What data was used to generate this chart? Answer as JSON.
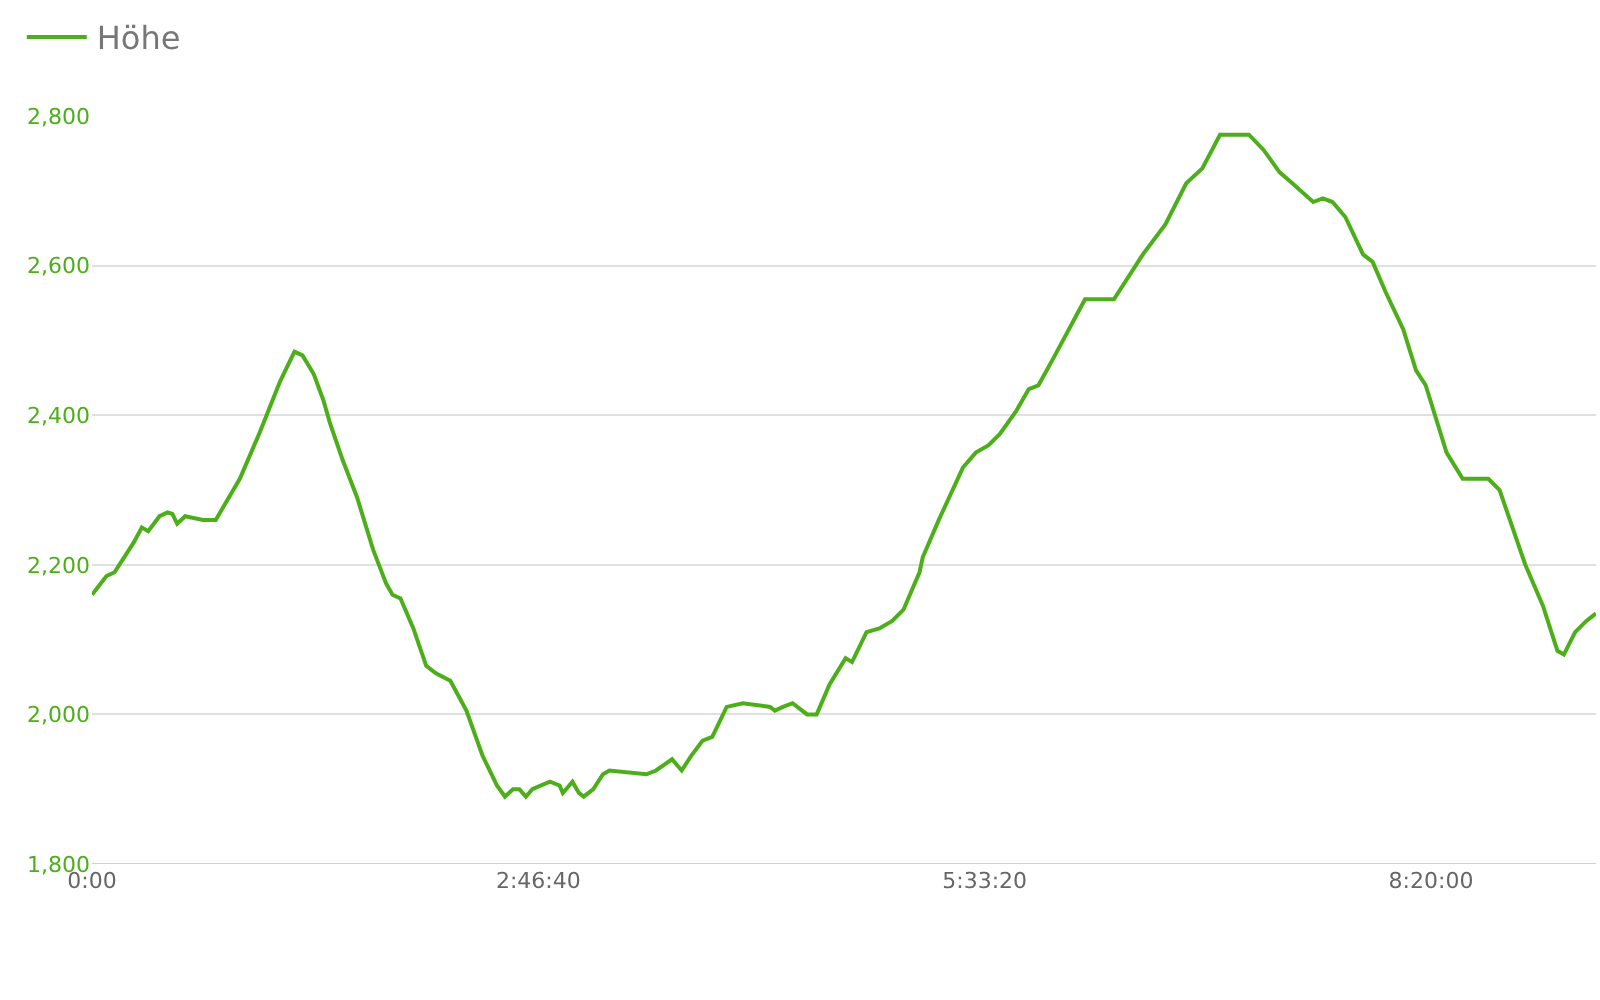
{
  "chart_data": {
    "type": "line",
    "legend": "top left",
    "grid": "y",
    "marker": "none",
    "line_style": "solid",
    "x": [
      0,
      0.09,
      0.14,
      0.2,
      0.26,
      0.31,
      0.35,
      0.42,
      0.47,
      0.5,
      0.53,
      0.58,
      0.69,
      0.77,
      0.92,
      1.04,
      1.17,
      1.26,
      1.31,
      1.38,
      1.44,
      1.48,
      1.56,
      1.65,
      1.75,
      1.83,
      1.87,
      1.92,
      2.0,
      2.08,
      2.14,
      2.23,
      2.33,
      2.43,
      2.52,
      2.57,
      2.62,
      2.66,
      2.7,
      2.74,
      2.85,
      2.91,
      2.93,
      2.99,
      3.03,
      3.06,
      3.12,
      3.18,
      3.22,
      3.45,
      3.51,
      3.61,
      3.67,
      3.73,
      3.8,
      3.86,
      3.95,
      4.05,
      4.22,
      4.25,
      4.3,
      4.36,
      4.45,
      4.51,
      4.59,
      4.69,
      4.73,
      4.82,
      4.9,
      4.98,
      5.05,
      5.15,
      5.17,
      5.27,
      5.42,
      5.5,
      5.58,
      5.65,
      5.75,
      5.83,
      5.89,
      5.98,
      6.08,
      6.18,
      6.36,
      6.54,
      6.68,
      6.81,
      6.91,
      7.02,
      7.2,
      7.29,
      7.39,
      7.47,
      7.6,
      7.66,
      7.72,
      7.8,
      7.91,
      7.97,
      8.05,
      8.16,
      8.24,
      8.3,
      8.43,
      8.53,
      8.69,
      8.76,
      8.92,
      9.03,
      9.12,
      9.16,
      9.23,
      9.3,
      9.36
    ],
    "series": [
      {
        "name": "Höhe",
        "color": "#4caf1a",
        "values": [
          2160,
          2185,
          2190,
          2210,
          2230,
          2250,
          2245,
          2265,
          2270,
          2268,
          2255,
          2265,
          2260,
          2260,
          2315,
          2375,
          2445,
          2485,
          2480,
          2455,
          2420,
          2390,
          2340,
          2290,
          2220,
          2175,
          2160,
          2155,
          2115,
          2065,
          2055,
          2045,
          2005,
          1945,
          1905,
          1890,
          1900,
          1900,
          1890,
          1900,
          1910,
          1905,
          1895,
          1910,
          1895,
          1890,
          1900,
          1920,
          1925,
          1920,
          1925,
          1940,
          1925,
          1945,
          1965,
          1970,
          2010,
          2015,
          2010,
          2005,
          2010,
          2015,
          2000,
          2000,
          2040,
          2075,
          2070,
          2110,
          2115,
          2125,
          2140,
          2190,
          2210,
          2260,
          2330,
          2350,
          2360,
          2375,
          2405,
          2435,
          2440,
          2475,
          2515,
          2555,
          2555,
          2615,
          2655,
          2710,
          2730,
          2775,
          2775,
          2755,
          2725,
          2710,
          2685,
          2690,
          2685,
          2665,
          2615,
          2605,
          2565,
          2515,
          2460,
          2440,
          2350,
          2315,
          2315,
          2300,
          2200,
          2145,
          2085,
          2080,
          2110,
          2125,
          2135
        ]
      }
    ],
    "xlim": [
      0,
      9.36
    ],
    "xticks": [
      {
        "value": 0,
        "label": "0:00"
      },
      {
        "value": 2.7778,
        "label": "2:46:40"
      },
      {
        "value": 5.5556,
        "label": "5:33:20"
      },
      {
        "value": 8.3333,
        "label": "8:20:00"
      }
    ],
    "ylim": [
      1800,
      2800
    ],
    "yticks": [
      {
        "value": 1800,
        "label": "1,800"
      },
      {
        "value": 2000,
        "label": "2,000"
      },
      {
        "value": 2200,
        "label": "2,200"
      },
      {
        "value": 2400,
        "label": "2,400"
      },
      {
        "value": 2600,
        "label": "2,600"
      },
      {
        "value": 2800,
        "label": "2,800"
      }
    ]
  }
}
